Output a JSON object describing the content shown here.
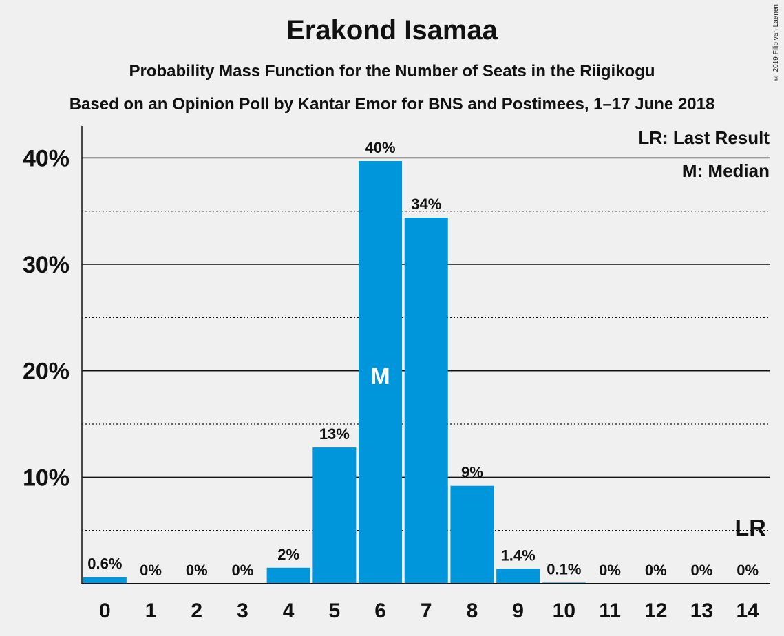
{
  "chart_data": {
    "type": "bar",
    "title": "Erakond Isamaa",
    "subtitle": "Probability Mass Function for the Number of Seats in the Riigikogu",
    "subtitle2": "Based on an Opinion Poll by Kantar Emor for BNS and Postimees, 1–17 June 2018",
    "categories": [
      "0",
      "1",
      "2",
      "3",
      "4",
      "5",
      "6",
      "7",
      "8",
      "9",
      "10",
      "11",
      "12",
      "13",
      "14"
    ],
    "values": [
      0.6,
      0,
      0,
      0,
      1.5,
      12.8,
      39.7,
      34.4,
      9.2,
      1.4,
      0.1,
      0,
      0,
      0,
      0
    ],
    "data_labels": [
      "0.6%",
      "0%",
      "0%",
      "0%",
      "2%",
      "13%",
      "40%",
      "34%",
      "9%",
      "1.4%",
      "0.1%",
      "0%",
      "0%",
      "0%",
      "0%"
    ],
    "ylim": [
      0,
      43
    ],
    "yticks": [
      {
        "value": 10,
        "label": "10%"
      },
      {
        "value": 20,
        "label": "20%"
      },
      {
        "value": 30,
        "label": "30%"
      },
      {
        "value": 40,
        "label": "40%"
      }
    ],
    "minor_gridlines": [
      5,
      15,
      25,
      35
    ],
    "median": {
      "category": "6",
      "label": "M"
    },
    "last_result": {
      "category": "14",
      "label": "LR",
      "value": 5
    },
    "legend": {
      "placement": "top-right",
      "entries": [
        "LR: Last Result",
        "M: Median"
      ]
    },
    "bar_color": "#0096db",
    "copyright": "© 2019 Filip van Laenen"
  }
}
